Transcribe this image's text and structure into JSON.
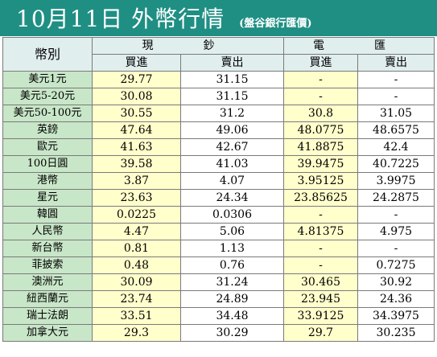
{
  "header": {
    "title": "10月11日 外幣行情",
    "subtitle": "(盤谷銀行匯價)"
  },
  "table": {
    "corner_label": "幣別",
    "groups": [
      "現　鈔",
      "電　匯"
    ],
    "subheaders": [
      "買進",
      "賣出",
      "買進",
      "賣出"
    ],
    "rows": [
      {
        "currency": "美元1元",
        "cash_buy": "29.77",
        "cash_sell": "31.15",
        "tt_buy": "-",
        "tt_sell": "-"
      },
      {
        "currency": "美元5-20元",
        "cash_buy": "30.08",
        "cash_sell": "31.15",
        "tt_buy": "-",
        "tt_sell": "-"
      },
      {
        "currency": "美元50-100元",
        "cash_buy": "30.55",
        "cash_sell": "31.2",
        "tt_buy": "30.8",
        "tt_sell": "31.05"
      },
      {
        "currency": "英鎊",
        "cash_buy": "47.64",
        "cash_sell": "49.06",
        "tt_buy": "48.0775",
        "tt_sell": "48.6575"
      },
      {
        "currency": "歐元",
        "cash_buy": "41.63",
        "cash_sell": "42.67",
        "tt_buy": "41.8875",
        "tt_sell": "42.4"
      },
      {
        "currency": "100日圓",
        "cash_buy": "39.58",
        "cash_sell": "41.03",
        "tt_buy": "39.9475",
        "tt_sell": "40.7225"
      },
      {
        "currency": "港幣",
        "cash_buy": "3.87",
        "cash_sell": "4.07",
        "tt_buy": "3.95125",
        "tt_sell": "3.9975"
      },
      {
        "currency": "星元",
        "cash_buy": "23.63",
        "cash_sell": "24.34",
        "tt_buy": "23.85625",
        "tt_sell": "24.2875"
      },
      {
        "currency": "韓圓",
        "cash_buy": "0.0225",
        "cash_sell": "0.0306",
        "tt_buy": "-",
        "tt_sell": "-"
      },
      {
        "currency": "人民幣",
        "cash_buy": "4.47",
        "cash_sell": "5.06",
        "tt_buy": "4.81375",
        "tt_sell": "4.975"
      },
      {
        "currency": "新台幣",
        "cash_buy": "0.81",
        "cash_sell": "1.13",
        "tt_buy": "-",
        "tt_sell": "-"
      },
      {
        "currency": "菲披索",
        "cash_buy": "0.48",
        "cash_sell": "0.76",
        "tt_buy": "-",
        "tt_sell": "0.7275"
      },
      {
        "currency": "澳洲元",
        "cash_buy": "30.09",
        "cash_sell": "31.24",
        "tt_buy": "30.465",
        "tt_sell": "30.92"
      },
      {
        "currency": "紐西蘭元",
        "cash_buy": "23.74",
        "cash_sell": "24.89",
        "tt_buy": "23.945",
        "tt_sell": "24.36"
      },
      {
        "currency": "瑞士法朗",
        "cash_buy": "33.51",
        "cash_sell": "34.48",
        "tt_buy": "33.9125",
        "tt_sell": "34.3975"
      },
      {
        "currency": "加拿大元",
        "cash_buy": "29.3",
        "cash_sell": "30.29",
        "tt_buy": "29.7",
        "tt_sell": "30.235"
      }
    ]
  },
  "colors": {
    "header_bg": "#1f8f84",
    "header_text": "#ffffff",
    "label_bg": "#c8e6c8",
    "cell_yellow": "#ffffcc",
    "cell_white": "#ffffff",
    "head_bg": "#e1eeee"
  }
}
